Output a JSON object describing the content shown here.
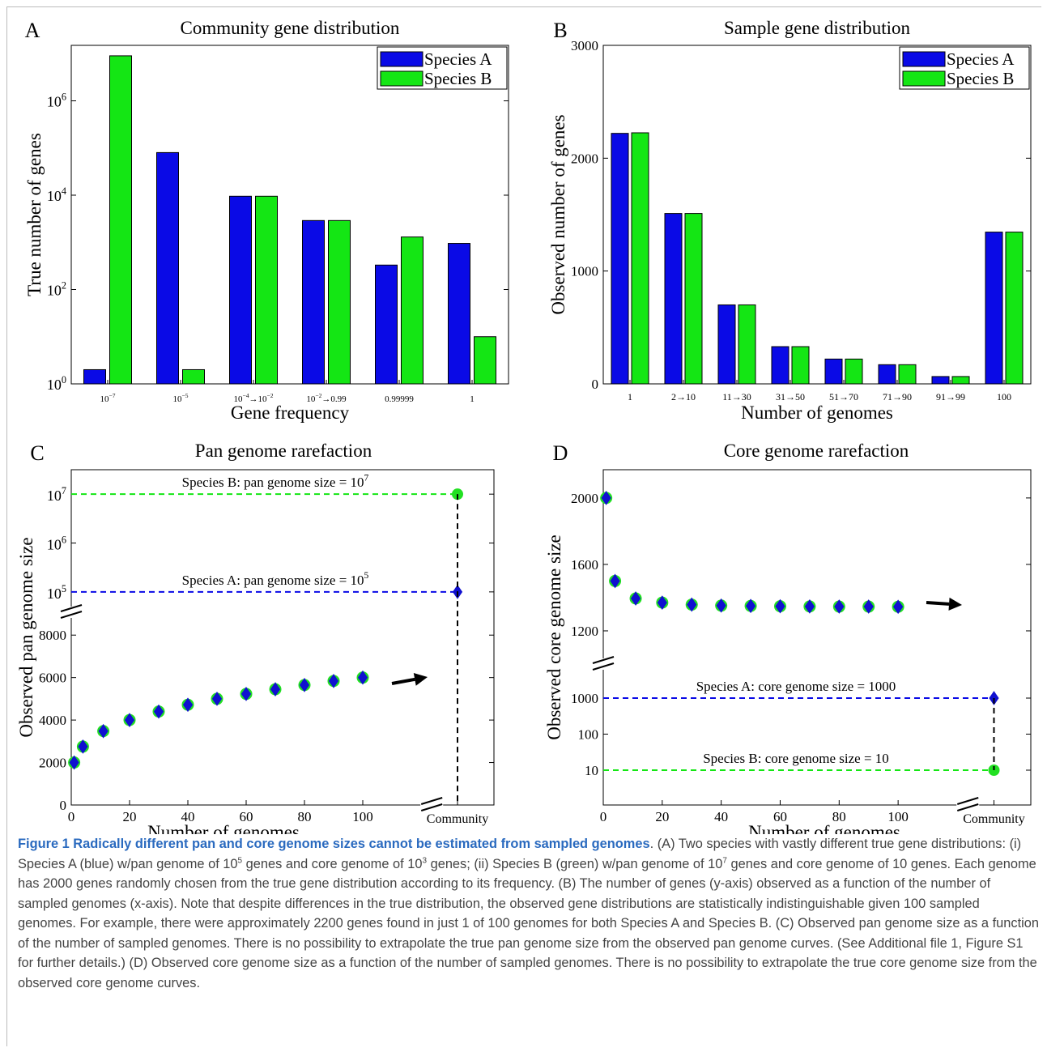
{
  "chart_data": [
    {
      "type": "bar",
      "panel_letter": "A",
      "title": "Community gene distribution",
      "xlabel": "Gene frequency",
      "ylabel": "True number of genes",
      "yscale": "log",
      "ylim": [
        1,
        15000000
      ],
      "y_ticks": [
        {
          "value": 1,
          "base": "10",
          "exp": "0"
        },
        {
          "value": 100,
          "base": "10",
          "exp": "2"
        },
        {
          "value": 10000,
          "base": "10",
          "exp": "4"
        },
        {
          "value": 1000000,
          "base": "10",
          "exp": "6"
        }
      ],
      "categories": [
        {
          "base": "10",
          "exp": "−7",
          "tail": ""
        },
        {
          "base": "10",
          "exp": "−5",
          "tail": ""
        },
        {
          "base": "10",
          "exp": "−4",
          "tail": "→10",
          "exp2": "−2"
        },
        {
          "base": "10",
          "exp": "−2",
          "tail": "→0.99",
          "exp2": ""
        },
        {
          "base": "0.99999",
          "exp": "",
          "tail": ""
        },
        {
          "base": "1",
          "exp": "",
          "tail": ""
        }
      ],
      "series": [
        {
          "name": "Species A",
          "color": "#0a0ae6",
          "values": [
            2,
            80000,
            9500,
            2900,
            330,
            950
          ]
        },
        {
          "name": "Species B",
          "color": "#14e614",
          "values": [
            9000000,
            2,
            9500,
            2900,
            1300,
            10
          ]
        }
      ],
      "legend_placement": "top-right"
    },
    {
      "type": "bar",
      "panel_letter": "B",
      "title": "Sample gene distribution",
      "xlabel": "Number of genomes",
      "ylabel": "Observed number of genes",
      "ylim": [
        0,
        3000
      ],
      "y_ticks": [
        0,
        1000,
        2000,
        3000
      ],
      "categories": [
        "1",
        "2→10",
        "11→30",
        "31→50",
        "51→70",
        "71→90",
        "91→99",
        "100"
      ],
      "series": [
        {
          "name": "Species A",
          "color": "#0a0ae6",
          "values": [
            2220,
            1510,
            700,
            330,
            220,
            170,
            65,
            1345
          ]
        },
        {
          "name": "Species B",
          "color": "#14e614",
          "values": [
            2225,
            1510,
            700,
            330,
            220,
            170,
            65,
            1345
          ]
        }
      ],
      "legend_placement": "top-right"
    },
    {
      "type": "scatter",
      "panel_letter": "C",
      "title": "Pan genome rarefaction",
      "xlabel": "Number of genomes",
      "ylabel": "Observed pan genome size",
      "x_ticks": [
        "0",
        "20",
        "40",
        "60",
        "80",
        "100"
      ],
      "x_community_label": "Community",
      "y_ticks_lower": [
        0,
        2000,
        4000,
        6000,
        8000
      ],
      "y_ticks_upper": [
        {
          "value": 100000,
          "base": "10",
          "exp": "5"
        },
        {
          "value": 1000000,
          "base": "10",
          "exp": "6"
        },
        {
          "value": 10000000,
          "base": "10",
          "exp": "7"
        }
      ],
      "points": {
        "x": [
          1,
          4,
          11,
          20,
          30,
          40,
          50,
          60,
          70,
          80,
          90,
          100
        ],
        "y": [
          2000,
          2750,
          3480,
          4000,
          4400,
          4720,
          5000,
          5230,
          5450,
          5650,
          5840,
          6000
        ]
      },
      "reference_lines": [
        {
          "label": "Species B: pan genome size = 10",
          "label_exp": "7",
          "value": 10000000,
          "color": "#14e614",
          "marker": "circle"
        },
        {
          "label": "Species A: pan genome size = 10",
          "label_exp": "5",
          "value": 100000,
          "color": "#0a0ae6",
          "marker": "diamond"
        }
      ]
    },
    {
      "type": "scatter",
      "panel_letter": "D",
      "title": "Core genome rarefaction",
      "xlabel": "Number of genomes",
      "ylabel": "Observed core genome size",
      "x_ticks": [
        "0",
        "20",
        "40",
        "60",
        "80",
        "100"
      ],
      "x_community_label": "Community",
      "y_ticks_upper": [
        1200,
        1600,
        2000
      ],
      "y_ticks_lower": [
        10,
        100,
        1000
      ],
      "points": {
        "x": [
          1,
          4,
          11,
          20,
          30,
          40,
          50,
          60,
          70,
          80,
          90,
          100
        ],
        "y": [
          2000,
          1500,
          1395,
          1370,
          1358,
          1352,
          1350,
          1348,
          1347,
          1346,
          1346,
          1345
        ]
      },
      "reference_lines": [
        {
          "label": "Species A: core genome size = 1000",
          "label_exp": "",
          "value": 1000,
          "color": "#0a0ae6",
          "marker": "diamond"
        },
        {
          "label": "Species B: core genome size = 10",
          "label_exp": "",
          "value": 10,
          "color": "#14e614",
          "marker": "circle"
        }
      ]
    }
  ],
  "caption": {
    "lead": "Figure 1 Radically different pan and core genome sizes cannot be estimated from sampled genomes",
    "part1": ". (A) Two species with vastly different true gene distributions: (i) Species A (blue) w/pan genome of 10",
    "exp1": "5",
    "part2": " genes and core genome of 10",
    "exp2": "3",
    "part3": " genes; (ii) Species B (green) w/pan genome of 10",
    "exp3": "7",
    "part4": " genes and core genome of 10 genes. Each genome has 2000 genes randomly chosen from the true gene distribution according to its frequency. (B) The number of genes (y-axis) observed as a function of the number of sampled genomes (x-axis). Note that despite differences in the true distribution, the observed gene distributions are statistically indistinguishable given 100 sampled genomes. For example, there were approximately 2200 genes found in just 1 of 100 genomes for both Species A and Species B. (C) Observed pan genome size as a function of the number of sampled genomes. There is no possibility to extrapolate the true pan genome size from the observed pan genome curves. (See Additional file 1, Figure S1 for further details.) (D) Observed core genome size as a function of the number of sampled genomes. There is no possibility to extrapolate the true core genome size from the observed core genome curves."
  }
}
